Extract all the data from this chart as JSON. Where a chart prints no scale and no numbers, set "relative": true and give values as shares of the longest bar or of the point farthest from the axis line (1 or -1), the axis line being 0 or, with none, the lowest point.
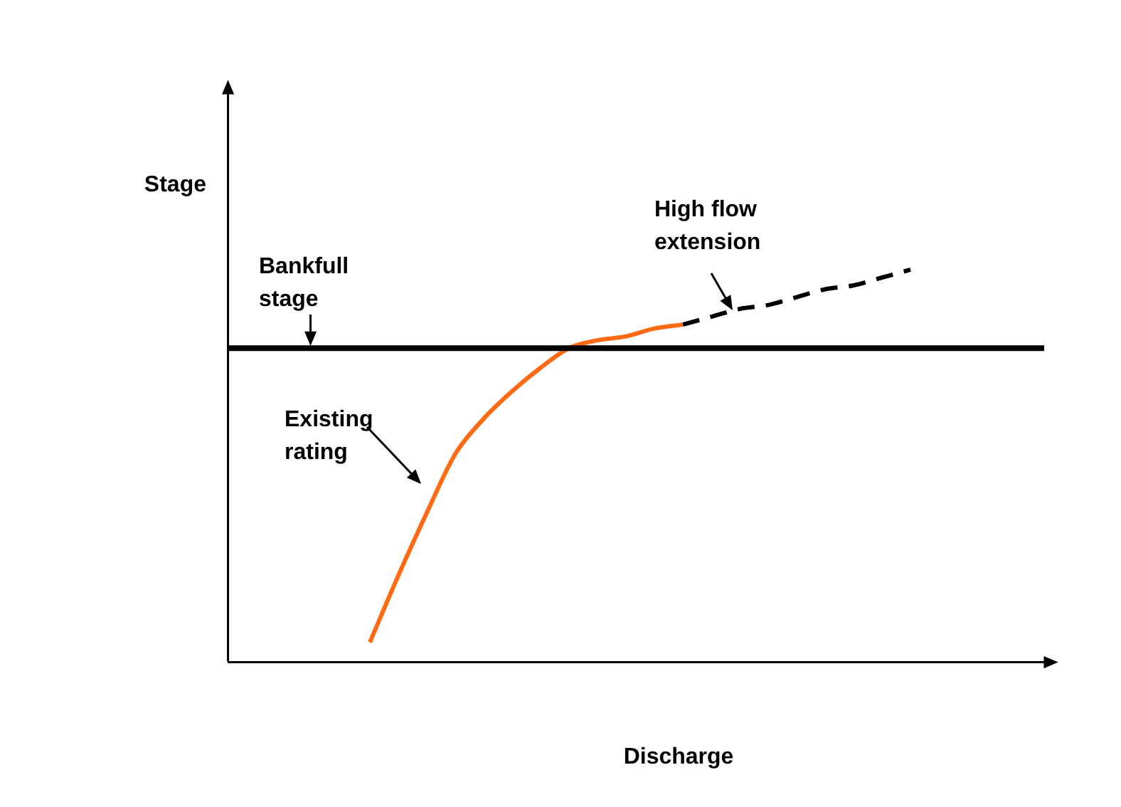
{
  "chart_data": {
    "type": "line",
    "relative": true,
    "xlabel": "Discharge",
    "ylabel": "Stage",
    "categories": [
      null,
      null,
      null,
      null,
      null,
      null,
      null,
      null,
      null,
      null,
      null,
      null,
      null,
      null,
      null,
      null,
      null,
      null,
      null,
      null,
      null,
      null,
      null,
      null,
      null,
      null,
      null,
      null,
      null,
      null
    ],
    "series": [
      {
        "name": "Existing rating",
        "color": "#ff6a13",
        "line_style": "solid",
        "values": [
          null,
          null,
          null,
          null,
          null,
          0.05,
          0.22,
          0.38,
          0.53,
          0.62,
          0.69,
          0.75,
          0.8,
          0.82,
          0.83,
          0.85,
          0.86,
          null,
          null,
          null,
          null,
          null,
          null,
          null,
          null,
          null,
          null,
          null,
          null,
          null
        ]
      },
      {
        "name": "High flow extension",
        "color": "#000000",
        "line_style": "dashed",
        "values": [
          null,
          null,
          null,
          null,
          null,
          null,
          null,
          null,
          null,
          null,
          null,
          null,
          null,
          null,
          null,
          null,
          0.86,
          0.88,
          0.9,
          0.91,
          0.93,
          0.95,
          0.96,
          0.98,
          1.0,
          null,
          null,
          null,
          null,
          null
        ]
      }
    ],
    "ref_lines": [
      {
        "axis": "y",
        "value": 0.8,
        "label": "Bankfull stage",
        "color": "#000000"
      }
    ],
    "legend": false,
    "grid": false,
    "marker": "none"
  }
}
